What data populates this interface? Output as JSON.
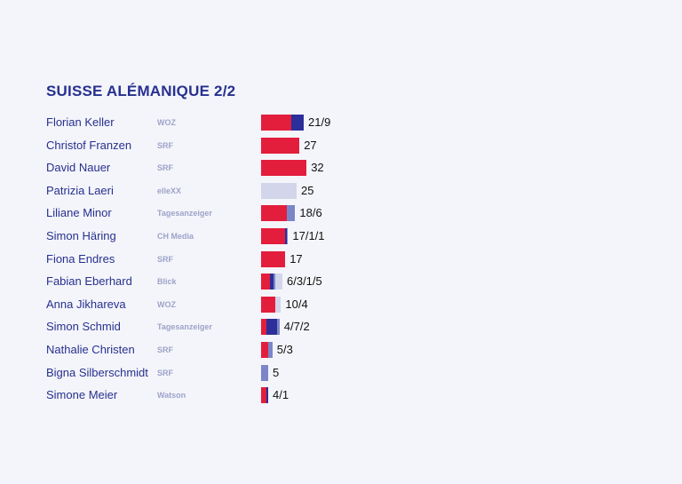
{
  "title": "SUISSE ALÉMANIQUE  2/2",
  "colors": [
    "#e31e3c",
    "#2c2f9a",
    "#7b86c8",
    "#d3d6ea"
  ],
  "chart_data": {
    "type": "bar",
    "orientation": "horizontal",
    "stacked": true,
    "rows": [
      {
        "name": "Florian Keller",
        "outlet": "WOZ",
        "label": "21/9",
        "values": [
          21,
          9,
          0,
          0
        ]
      },
      {
        "name": "Christof Franzen",
        "outlet": "SRF",
        "label": "27",
        "values": [
          27,
          0,
          0,
          0
        ]
      },
      {
        "name": "David Nauer",
        "outlet": "SRF",
        "label": "32",
        "values": [
          32,
          0,
          0,
          0
        ]
      },
      {
        "name": "Patrizia Laeri",
        "outlet": "elleXX",
        "label": "25",
        "values": [
          0,
          0,
          0,
          25
        ]
      },
      {
        "name": "Liliane Minor",
        "outlet": "Tagesanzeiger",
        "label": "18/6",
        "values": [
          18,
          0,
          6,
          0
        ]
      },
      {
        "name": "Simon Häring",
        "outlet": "CH Media",
        "label": "17/1/1",
        "values": [
          17,
          1,
          1,
          0
        ]
      },
      {
        "name": "Fiona Endres",
        "outlet": "SRF",
        "label": "17",
        "values": [
          17,
          0,
          0,
          0
        ]
      },
      {
        "name": "Fabian Eberhard",
        "outlet": "Blick",
        "label": "6/3/1/5",
        "values": [
          6,
          3,
          1,
          5
        ]
      },
      {
        "name": "Anna Jikhareva",
        "outlet": "WOZ",
        "label": "10/4",
        "values": [
          10,
          0,
          0,
          4
        ]
      },
      {
        "name": "Simon Schmid",
        "outlet": "Tagesanzeiger",
        "label": "4/7/2",
        "values": [
          4,
          7,
          2,
          0
        ]
      },
      {
        "name": "Nathalie Christen",
        "outlet": "SRF",
        "label": "5/3",
        "values": [
          5,
          0,
          3,
          0
        ]
      },
      {
        "name": "Bigna Silberschmidt",
        "outlet": "SRF",
        "label": "5",
        "values": [
          0,
          0,
          5,
          0
        ]
      },
      {
        "name": "Simone Meier",
        "outlet": "Watson",
        "label": "4/1",
        "values": [
          4,
          1,
          0,
          0
        ]
      }
    ]
  }
}
